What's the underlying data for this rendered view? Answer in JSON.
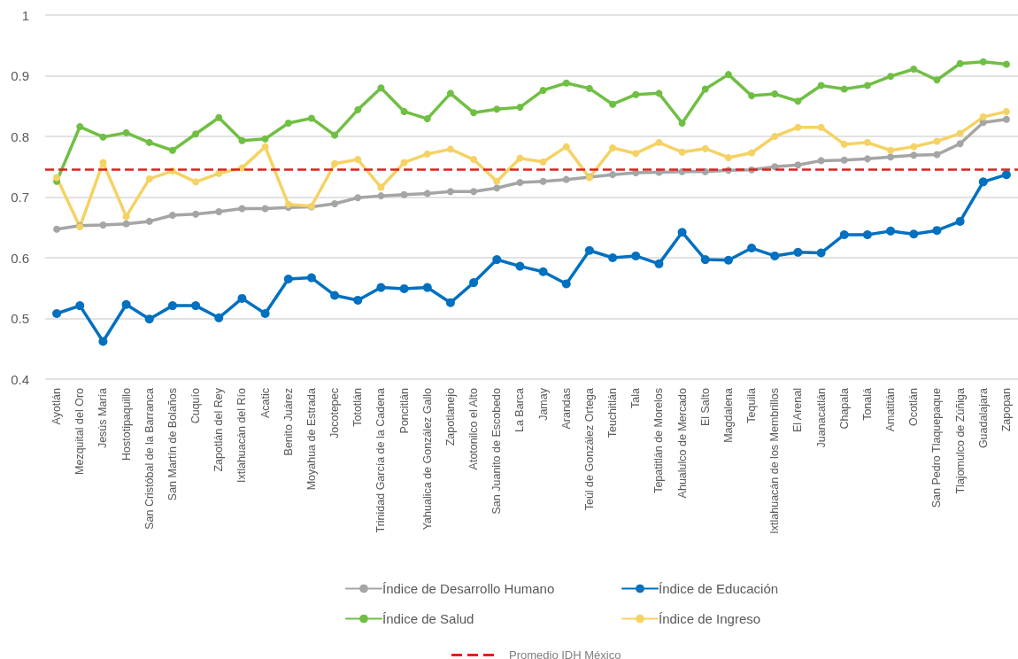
{
  "chart_data": {
    "type": "line",
    "categories": [
      "Ayotlán",
      "Mezquital del Oro",
      "Jesús María",
      "Hostotipaquillo",
      "San Cristóbal de la Barranca",
      "San Martín de Bolaños",
      "Cuquío",
      "Zapotlán del Rey",
      "Ixtlahuacán del Río",
      "Acatic",
      "Benito Juárez",
      "Moyahua de Estrada",
      "Jocotepec",
      "Tototlán",
      "Trinidad García de la Cadena",
      "Poncitlán",
      "Yahualica de González Gallo",
      "Zapotlanejo",
      "Atotonilco el Alto",
      "San Juanito de Escobedo",
      "La Barca",
      "Jamay",
      "Arandas",
      "Teúl de González Ortega",
      "Teuchitlán",
      "Tala",
      "Tepatitlán de Morelos",
      "Ahualulco de Mercado",
      "El Salto",
      "Magdalena",
      "Tequila",
      "Ixtlahuacán de los Membrillos",
      "El Arenal",
      "Juanacatlán",
      "Chapala",
      "Tonalá",
      "Amatitán",
      "Ocotlán",
      "San Pedro Tlaquepaque",
      "Tlajomulco de Zúñiga",
      "Guadalajara",
      "Zapopan"
    ],
    "series": [
      {
        "name": "Índice de Desarrollo Humano",
        "color": "#a5a5a5",
        "values": [
          0.647,
          0.653,
          0.654,
          0.656,
          0.66,
          0.67,
          0.672,
          0.676,
          0.681,
          0.681,
          0.683,
          0.684,
          0.689,
          0.699,
          0.702,
          0.704,
          0.706,
          0.709,
          0.709,
          0.715,
          0.724,
          0.726,
          0.729,
          0.733,
          0.737,
          0.74,
          0.741,
          0.742,
          0.742,
          0.744,
          0.745,
          0.75,
          0.753,
          0.76,
          0.761,
          0.763,
          0.766,
          0.769,
          0.77,
          0.788,
          0.823,
          0.828
        ]
      },
      {
        "name": "Índice de Educación",
        "color": "#0070c0",
        "values": [
          0.508,
          0.521,
          0.462,
          0.523,
          0.499,
          0.521,
          0.521,
          0.501,
          0.533,
          0.508,
          0.565,
          0.567,
          0.538,
          0.53,
          0.551,
          0.549,
          0.551,
          0.526,
          0.559,
          0.597,
          0.586,
          0.577,
          0.557,
          0.612,
          0.6,
          0.603,
          0.59,
          0.642,
          0.597,
          0.596,
          0.616,
          0.603,
          0.609,
          0.608,
          0.638,
          0.638,
          0.644,
          0.639,
          0.645,
          0.66,
          0.725,
          0.737
        ]
      },
      {
        "name": "Índice de Salud",
        "color": "#70bf44",
        "values": [
          0.726,
          0.816,
          0.799,
          0.806,
          0.79,
          0.777,
          0.804,
          0.831,
          0.793,
          0.796,
          0.822,
          0.83,
          0.802,
          0.844,
          0.88,
          0.841,
          0.829,
          0.871,
          0.839,
          0.845,
          0.848,
          0.876,
          0.888,
          0.879,
          0.853,
          0.869,
          0.871,
          0.822,
          0.878,
          0.902,
          0.867,
          0.87,
          0.858,
          0.884,
          0.878,
          0.884,
          0.899,
          0.911,
          0.893,
          0.92,
          0.923,
          0.919
        ]
      },
      {
        "name": "Índice de Ingreso",
        "color": "#f5d264",
        "values": [
          0.732,
          0.651,
          0.757,
          0.668,
          0.73,
          0.743,
          0.725,
          0.739,
          0.748,
          0.783,
          0.688,
          0.685,
          0.755,
          0.762,
          0.716,
          0.757,
          0.771,
          0.779,
          0.762,
          0.726,
          0.764,
          0.758,
          0.783,
          0.732,
          0.781,
          0.772,
          0.79,
          0.774,
          0.78,
          0.765,
          0.773,
          0.8,
          0.815,
          0.815,
          0.787,
          0.79,
          0.777,
          0.783,
          0.792,
          0.805,
          0.832,
          0.841
        ]
      }
    ],
    "ylim": [
      0.4,
      1
    ],
    "yticks": [
      0.4,
      0.5,
      0.6,
      0.7,
      0.8,
      0.9,
      1
    ],
    "grid": "y",
    "legend": "bottom",
    "marker": "circle",
    "line_style": "solid",
    "ref_lines": [
      {
        "axis": "y",
        "value": 0.745,
        "label": "Promedio IDH México",
        "color": "#e02020",
        "line_style": "dashed"
      }
    ]
  }
}
